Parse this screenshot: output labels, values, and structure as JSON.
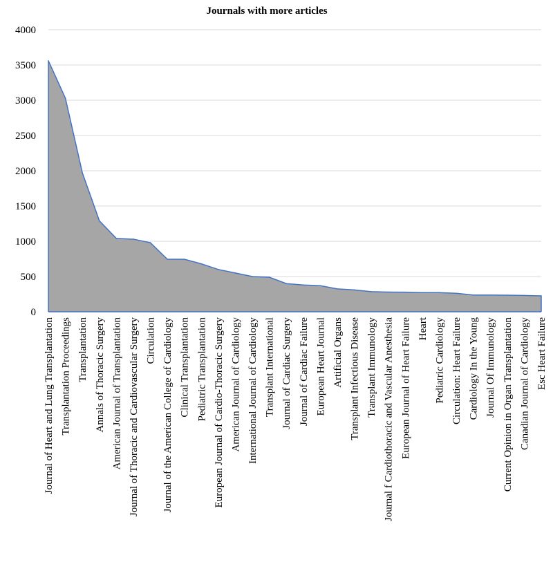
{
  "chart_data": {
    "type": "area",
    "title": "Journals with more articles",
    "xlabel": "",
    "ylabel": "",
    "ylim": [
      0,
      4000
    ],
    "yticks": [
      "0",
      "500",
      "1000",
      "1500",
      "2000",
      "2500",
      "3000",
      "3500",
      "4000"
    ],
    "grid": true,
    "legend": "none",
    "fill_color": "#a6a6a6",
    "line_color": "#4472c4",
    "categories": [
      "Journal of Heart and Lung Transplantation",
      "Transplantation Proceedings",
      "Transplantation",
      "Annals of Thoracic Surgery",
      "American Journal of Transplantation",
      "Journal of Thoracic and Cardiovascular Surgery",
      "Circulation",
      "Journal of the American College of Cardiology",
      "Clinical Transplantation",
      "Pediatric Transplantation",
      "European Journal of Cardio-Thoracic Surgery",
      "American Journal of Cardiology",
      "International Journal of Cardiology",
      "Transplant International",
      "Journal of Cardiac Surgery",
      "Journal of Cardiac Failure",
      "European Heart Journal",
      "Artificial Organs",
      "Transplant Infectious Disease",
      "Transplant Immunology",
      "Journal f Cardiothoracic and Vascular Anesthesia",
      "European Journal of Heart Failure",
      "Heart",
      "Pediatric Cardiology",
      "Circulation: Heart Failure",
      "Cardiology In the Young",
      "Journal Of Immunology",
      "Current Opinion in Organ Transplantation",
      "Canadian Journal of Cardiology",
      "Esc Heart Failure"
    ],
    "series": [
      {
        "values": [
          3560,
          3030,
          1970,
          1290,
          1040,
          1030,
          980,
          745,
          745,
          680,
          600,
          550,
          500,
          490,
          400,
          380,
          370,
          325,
          310,
          285,
          280,
          278,
          272,
          272,
          262,
          238,
          238,
          235,
          232,
          225
        ]
      }
    ]
  }
}
